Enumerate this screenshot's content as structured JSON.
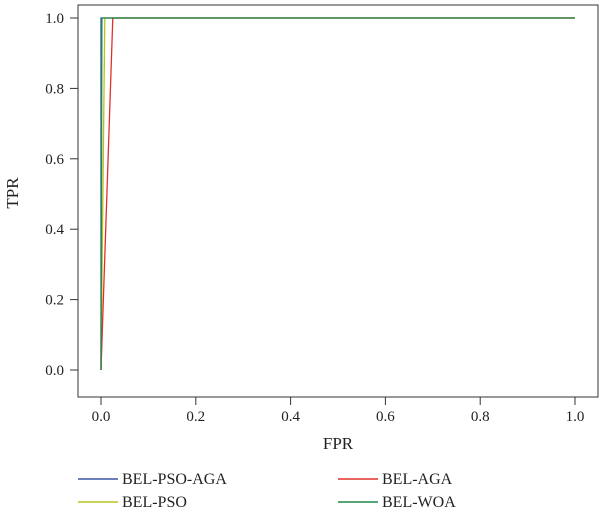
{
  "chart_data": {
    "type": "line",
    "title": "",
    "xlabel": "FPR",
    "ylabel": "TPR",
    "xlim": [
      0.0,
      1.0
    ],
    "ylim": [
      0.0,
      1.0
    ],
    "x_ticks": [
      "0.0",
      "0.2",
      "0.4",
      "0.6",
      "0.8",
      "1.0"
    ],
    "y_ticks": [
      "0.0",
      "0.2",
      "0.4",
      "0.6",
      "0.8",
      "1.0"
    ],
    "grid": false,
    "legend_position": "bottom",
    "series": [
      {
        "name": "BEL-PSO-AGA",
        "color": "#3a55a4",
        "x": [
          0.0,
          0.0,
          1.0
        ],
        "y": [
          0.0,
          1.0,
          1.0
        ]
      },
      {
        "name": "BEL-PSO",
        "color": "#b8c21a",
        "x": [
          0.0,
          0.008,
          1.0
        ],
        "y": [
          0.0,
          1.0,
          1.0
        ]
      },
      {
        "name": "BEL-AGA",
        "color": "#e0302a",
        "x": [
          0.0,
          0.025,
          1.0
        ],
        "y": [
          0.0,
          1.0,
          1.0
        ]
      },
      {
        "name": "BEL-WOA",
        "color": "#1f8a4c",
        "x": [
          0.0,
          0.002,
          1.0
        ],
        "y": [
          0.0,
          1.0,
          1.0
        ]
      }
    ]
  }
}
